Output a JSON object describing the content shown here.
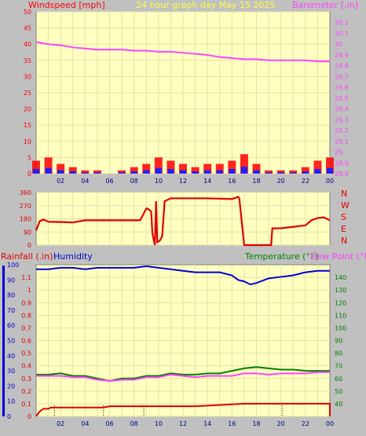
{
  "colors": {
    "background": "#c0c0c0",
    "plot": "#ffffc0",
    "grid": "#e3e3a8",
    "windspeed": "#ff0000",
    "gust_fill": "#ff0000",
    "avg_fill": "#2020ff",
    "low_fill": "#00a000",
    "barometer": "#ff40ff",
    "direction": "#e00000",
    "rainfall": "#e00000",
    "humidity": "#0000d0",
    "temperature": "#008000",
    "dewpoint": "#ff40ff",
    "title_yellow": "#ffff40"
  },
  "header": {
    "windspeed_label": "Windspeed [mph]",
    "title": "24 hour graph day   May 15 2025",
    "barometer_label": "Barometer [.in]"
  },
  "lower_header": {
    "rainfall_label": "Rainfall (.in)",
    "humidity_label": "Humidity",
    "temperature_label": "Temperature (°F)",
    "dewpoint_label": "Dew Point (°F)"
  },
  "x_ticks": [
    "02",
    "04",
    "06",
    "08",
    "10",
    "12",
    "14",
    "16",
    "18",
    "20",
    "22",
    "00"
  ],
  "chart_data": [
    {
      "type": "line",
      "name": "wind-barometer",
      "x_unit": "hours",
      "xlim": [
        0,
        24
      ],
      "y_left": {
        "label": "Windspeed [mph]",
        "lim": [
          0,
          50
        ],
        "ticks": [
          0,
          5,
          10,
          15,
          20,
          25,
          30,
          35,
          40,
          45,
          50
        ]
      },
      "y_right": {
        "label": "Barometer [.in]",
        "lim": [
          28.8,
          30.3
        ],
        "ticks": [
          "28.8",
          "28.9",
          "29",
          "29.1",
          "29.2",
          "29.3",
          "29.4",
          "29.5",
          "29.6",
          "29.7",
          "29.8",
          "29.9",
          "30",
          "30.1",
          "30.2"
        ]
      },
      "series": [
        {
          "name": "Barometer [.in]",
          "axis": "right",
          "x": [
            0,
            1,
            2,
            3,
            4,
            5,
            6,
            7,
            8,
            9,
            10,
            11,
            12,
            13,
            14,
            15,
            16,
            17,
            18,
            19,
            20,
            21,
            22,
            23,
            24
          ],
          "y": [
            30.02,
            30.0,
            29.99,
            29.97,
            29.96,
            29.95,
            29.95,
            29.95,
            29.94,
            29.94,
            29.93,
            29.93,
            29.92,
            29.91,
            29.9,
            29.88,
            29.87,
            29.86,
            29.86,
            29.85,
            29.85,
            29.85,
            29.85,
            29.84,
            29.84
          ]
        },
        {
          "name": "Windspeed [mph]",
          "axis": "left",
          "x": [
            0,
            1,
            2,
            3,
            4,
            5,
            6,
            7,
            8,
            9,
            10,
            11,
            12,
            13,
            14,
            15,
            16,
            17,
            18,
            19,
            20,
            21,
            22,
            23,
            24
          ],
          "y": [
            4,
            5,
            3,
            2,
            1,
            1,
            0,
            1,
            2,
            3,
            5,
            4,
            3,
            2,
            3,
            3,
            4,
            6,
            3,
            1,
            1,
            1,
            2,
            4,
            5
          ]
        }
      ]
    },
    {
      "type": "line",
      "name": "wind-direction",
      "xlim": [
        0,
        24
      ],
      "y_left": {
        "lim": [
          0,
          360
        ],
        "ticks": [
          0,
          45,
          90,
          135,
          180,
          225,
          270,
          315,
          360
        ]
      },
      "y_right": {
        "ticks": [
          "N",
          "W",
          "S",
          "E",
          "N"
        ]
      },
      "series": [
        {
          "name": "Wind direction",
          "x": [
            0,
            0.3,
            0.6,
            1,
            2,
            3,
            4,
            5,
            6,
            7,
            7.5,
            8,
            8.5,
            9,
            9.1,
            9.4,
            9.5,
            9.7,
            9.8,
            9.9,
            10.1,
            10.3,
            10.5,
            11,
            12,
            14,
            16,
            16.5,
            16.6,
            17.0,
            19.2,
            19.3,
            20,
            21,
            22,
            22.5,
            23,
            23.5,
            24
          ],
          "y": [
            100,
            165,
            175,
            160,
            158,
            155,
            170,
            170,
            170,
            170,
            170,
            170,
            170,
            250,
            250,
            230,
            80,
            0,
            300,
            20,
            30,
            60,
            300,
            320,
            320,
            320,
            315,
            330,
            320,
            0,
            0,
            115,
            115,
            125,
            135,
            170,
            185,
            190,
            170
          ]
        }
      ]
    },
    {
      "type": "line",
      "name": "rain-humidity-temperature",
      "xlim": [
        0,
        24
      ],
      "y_left": {
        "label": "Rainfall (.in)",
        "lim": [
          0,
          1.2
        ],
        "ticks": [
          "0",
          "0.1",
          "0.2",
          "0.3",
          "0.4",
          "0.5",
          "0.6",
          "0.7",
          "0.8",
          "0.9",
          "1",
          "1.1"
        ]
      },
      "y_left_outer": {
        "label": "Humidity",
        "lim": [
          0,
          100
        ],
        "ticks": [
          0,
          10,
          20,
          30,
          40,
          50,
          60,
          70,
          80,
          90,
          100
        ]
      },
      "y_right": {
        "label": "Temperature (°F)",
        "lim": [
          30,
          150
        ],
        "ticks": [
          40,
          50,
          60,
          70,
          80,
          90,
          100,
          110,
          120,
          130,
          140
        ]
      },
      "series": [
        {
          "name": "Humidity",
          "axis": "outer",
          "x": [
            0,
            1,
            2,
            3,
            4,
            5,
            6,
            7,
            8,
            9,
            10,
            11,
            12,
            13,
            14,
            15,
            16,
            16.5,
            17,
            17.5,
            18,
            19,
            20,
            21,
            22,
            23,
            24
          ],
          "y": [
            97,
            97,
            98,
            98,
            97,
            98,
            98,
            98,
            98,
            99,
            98,
            97,
            96,
            95,
            95,
            95,
            93,
            90,
            89,
            87,
            88,
            91,
            92,
            93,
            95,
            96,
            96
          ]
        },
        {
          "name": "Temperature (°F)",
          "axis": "right",
          "x": [
            0,
            1,
            2,
            3,
            4,
            5,
            6,
            7,
            8,
            9,
            10,
            11,
            12,
            13,
            14,
            15,
            16,
            17,
            18,
            19,
            20,
            21,
            22,
            23,
            24
          ],
          "y": [
            63,
            63,
            64,
            62,
            62,
            60,
            58,
            60,
            60,
            62,
            62,
            64,
            63,
            63,
            64,
            64,
            66,
            68,
            69,
            68,
            67,
            67,
            66,
            66,
            66
          ]
        },
        {
          "name": "Dew Point (°F)",
          "axis": "right",
          "x": [
            0,
            1,
            2,
            3,
            4,
            5,
            6,
            7,
            8,
            9,
            10,
            11,
            12,
            13,
            14,
            15,
            16,
            17,
            18,
            19,
            20,
            21,
            22,
            23,
            24
          ],
          "y": [
            62,
            62,
            62,
            61,
            61,
            59,
            58,
            59,
            59,
            61,
            61,
            63,
            62,
            61,
            62,
            62,
            62,
            64,
            64,
            63,
            64,
            64,
            64,
            65,
            65
          ]
        },
        {
          "name": "Rainfall (.in)",
          "axis": "left",
          "x": [
            0,
            0.3,
            0.6,
            1.0,
            1.2,
            5.5,
            6,
            12,
            13,
            17,
            23.5,
            24,
            24.05
          ],
          "y": [
            0,
            0.04,
            0.06,
            0.06,
            0.07,
            0.07,
            0.08,
            0.08,
            0.08,
            0.1,
            0.1,
            0.1,
            0.0
          ]
        }
      ]
    }
  ]
}
